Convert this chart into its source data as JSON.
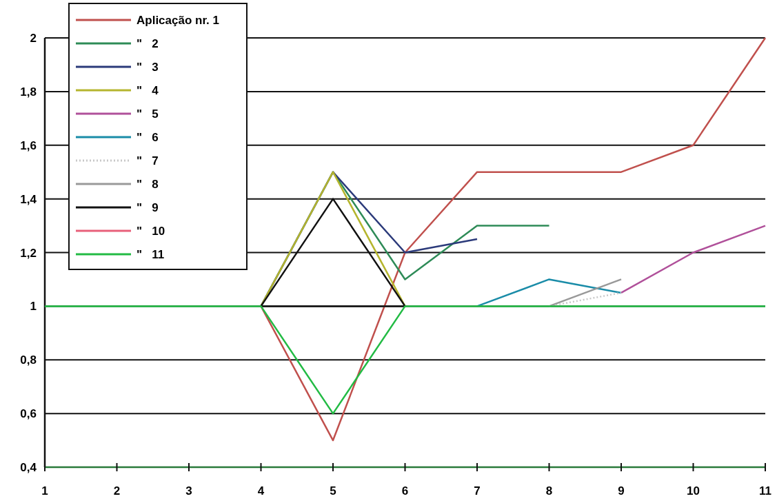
{
  "chart_data": {
    "type": "line",
    "xlim": [
      1,
      11
    ],
    "xticks": [
      1,
      2,
      3,
      4,
      5,
      6,
      7,
      8,
      9,
      10,
      11
    ],
    "ylim": [
      0.4,
      2
    ],
    "yticks": [
      {
        "value": 0.4,
        "label": "0,4"
      },
      {
        "value": 0.6,
        "label": "0,6"
      },
      {
        "value": 0.8,
        "label": "0,8"
      },
      {
        "value": 1,
        "label": "1"
      },
      {
        "value": 1.2,
        "label": "1,2"
      },
      {
        "value": 1.4,
        "label": "1,4"
      },
      {
        "value": 1.6,
        "label": "1,6"
      },
      {
        "value": 1.8,
        "label": "1,8"
      },
      {
        "value": 2,
        "label": "2"
      }
    ],
    "grid": "y",
    "legend": "top left",
    "marker": "none",
    "line_style": "solid",
    "series": [
      {
        "name": "Aplicação nr. 1",
        "color": "#c0504d",
        "x": [
          4,
          5,
          6,
          7,
          8,
          9,
          10,
          11
        ],
        "values": [
          1,
          0.5,
          1.2,
          1.5,
          1.5,
          1.5,
          1.6,
          2
        ]
      },
      {
        "name": "\"   2",
        "color": "#2e8b57",
        "x": [
          4,
          5,
          6,
          7,
          8
        ],
        "values": [
          1,
          1.5,
          1.1,
          1.3,
          1.3
        ]
      },
      {
        "name": "\"   3",
        "color": "#2b3a7a",
        "x": [
          4,
          5,
          6,
          7
        ],
        "values": [
          1,
          1.5,
          1.2,
          1.25
        ]
      },
      {
        "name": "\"   4",
        "color": "#b5b52e",
        "x": [
          4,
          5,
          6
        ],
        "values": [
          1,
          1.5,
          1
        ]
      },
      {
        "name": "\"   5",
        "color": "#b0509a",
        "x": [
          9,
          10,
          11
        ],
        "values": [
          1.05,
          1.2,
          1.3
        ]
      },
      {
        "name": "\"   6",
        "color": "#1a8ca8",
        "x": [
          7,
          8,
          9
        ],
        "values": [
          1,
          1.1,
          1.05
        ]
      },
      {
        "name": "\"   7",
        "color": "#c8c8c8",
        "line_style": "dotted",
        "x": [
          8,
          9
        ],
        "values": [
          1,
          1.05
        ]
      },
      {
        "name": "\"   8",
        "color": "#999999",
        "x": [
          8,
          9
        ],
        "values": [
          1,
          1.1
        ]
      },
      {
        "name": "\"   9",
        "color": "#111111",
        "x": [
          4,
          5,
          6
        ],
        "values": [
          1,
          1.4,
          1
        ]
      },
      {
        "color": "#111111",
        "x": [
          4,
          6
        ],
        "values": [
          1,
          1
        ]
      },
      {
        "name": "\"   10",
        "color": "#e8607a"
      },
      {
        "name": "\"   11",
        "color": "#22bb44",
        "x": [
          1,
          2,
          3,
          4,
          5,
          6,
          7,
          8,
          9,
          10,
          11
        ],
        "values": [
          1,
          1,
          1,
          1,
          0.6,
          1,
          1,
          1,
          1,
          1,
          1
        ]
      }
    ]
  }
}
